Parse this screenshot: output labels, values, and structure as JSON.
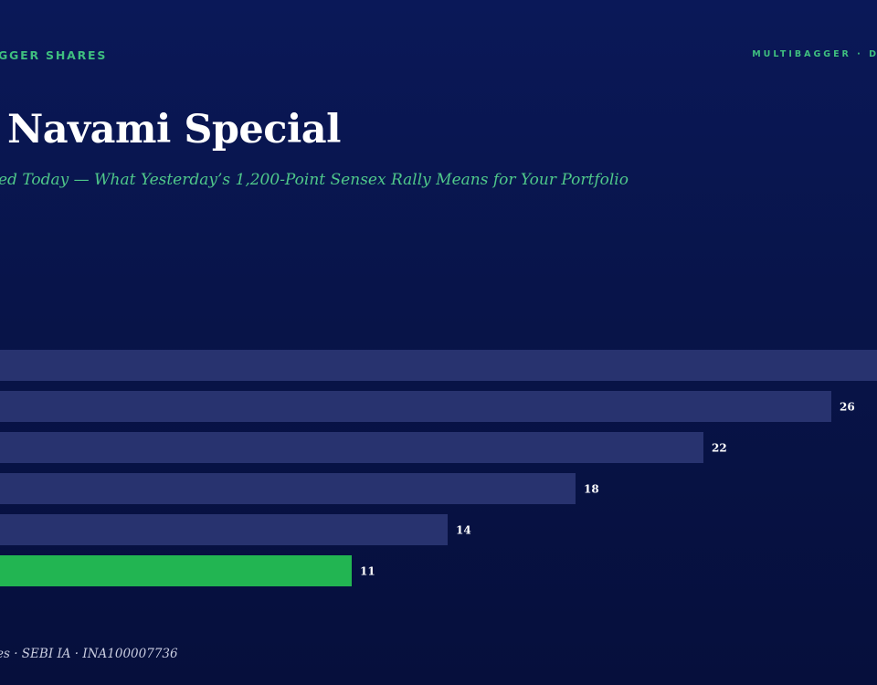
{
  "header": {
    "brand_left": "GGER SHARES",
    "brand_right": "MULTIBAGGER · D"
  },
  "title": "Navami Special",
  "subtitle": "ed Today — What Yesterday’s 1,200-Point Sensex Rally Means for Your Portfolio",
  "footer": "es · SEBI IA · INA100007736",
  "colors": {
    "background": "#081449",
    "bar_default": "#28336f",
    "bar_highlight": "#22b552",
    "accent_green": "#3fbf7f",
    "label": "#ffffff"
  },
  "chart_data": {
    "type": "bar",
    "orientation": "horizontal",
    "values": [
      null,
      26,
      22,
      18,
      14,
      11
    ],
    "value_labels": [
      "",
      "26",
      "22",
      "18",
      "14",
      "11"
    ],
    "highlight_index": 5,
    "xlim": [
      0,
      27.5
    ],
    "grid": false
  }
}
